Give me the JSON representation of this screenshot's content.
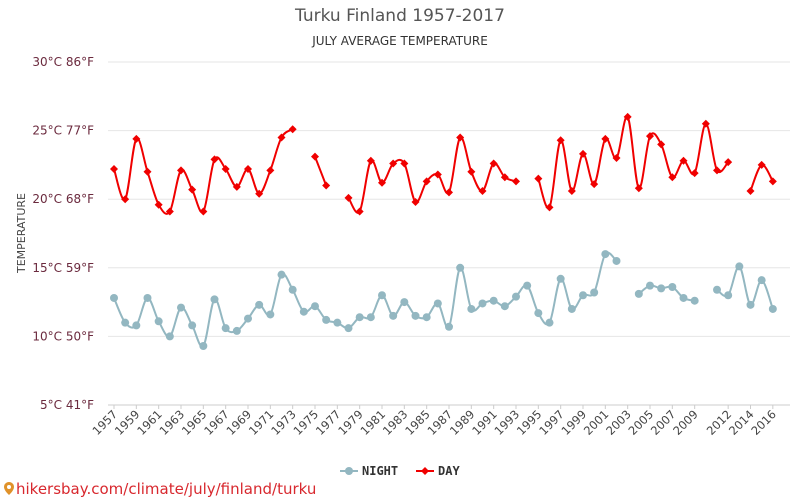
{
  "chart_data": {
    "type": "line",
    "title": "Turku Finland 1957-2017",
    "subtitle": "JULY AVERAGE TEMPERATURE",
    "ylabel": "TEMPERATURE",
    "ylim": [
      5,
      30
    ],
    "yticks": [
      {
        "value": 30,
        "label": "30°C 86°F"
      },
      {
        "value": 25,
        "label": "25°C 77°F"
      },
      {
        "value": 20,
        "label": "20°C 68°F"
      },
      {
        "value": 15,
        "label": "15°C 59°F"
      },
      {
        "value": 10,
        "label": "10°C 50°F"
      },
      {
        "value": 5,
        "label": "5°C 41°F"
      }
    ],
    "grid": true,
    "legend_position": "bottom",
    "x": [
      1957,
      1958,
      1959,
      1960,
      1961,
      1962,
      1963,
      1964,
      1965,
      1966,
      1967,
      1968,
      1969,
      1970,
      1971,
      1972,
      1973,
      1974,
      1975,
      1976,
      1977,
      1978,
      1979,
      1980,
      1981,
      1982,
      1983,
      1984,
      1985,
      1986,
      1987,
      1988,
      1989,
      1990,
      1991,
      1992,
      1993,
      1994,
      1995,
      1996,
      1997,
      1998,
      1999,
      2000,
      2001,
      2002,
      2003,
      2004,
      2005,
      2006,
      2007,
      2008,
      2009,
      2010,
      2011,
      2012,
      2013,
      2014,
      2015,
      2016,
      2017
    ],
    "xtick_labels": [
      "1957",
      "1959",
      "1961",
      "1963",
      "1965",
      "1967",
      "1969",
      "1971",
      "1973",
      "1975",
      "1977",
      "1979",
      "1981",
      "1983",
      "1985",
      "1987",
      "1989",
      "1991",
      "1993",
      "1995",
      "1997",
      "1999",
      "2001",
      "2003",
      "2005",
      "2007",
      "2009",
      "2012",
      "2014",
      "2016"
    ],
    "series": [
      {
        "name": "NIGHT",
        "color": "#93b7c1",
        "marker": "circle",
        "values": [
          12.8,
          11.0,
          10.8,
          12.8,
          11.1,
          10.0,
          12.1,
          10.8,
          9.3,
          12.7,
          10.6,
          10.4,
          11.3,
          12.3,
          11.6,
          14.5,
          13.4,
          11.8,
          12.2,
          11.2,
          11.0,
          10.6,
          11.4,
          11.4,
          13.0,
          11.5,
          12.5,
          11.5,
          11.4,
          12.4,
          10.7,
          15.0,
          12.0,
          12.4,
          12.6,
          12.2,
          12.9,
          13.7,
          11.7,
          11.0,
          14.2,
          12.0,
          13.0,
          13.2,
          16.0,
          15.5,
          null,
          13.1,
          13.7,
          13.5,
          13.6,
          12.8,
          12.6,
          null,
          13.4,
          13.0,
          15.1,
          12.3,
          14.1,
          12.0,
          null
        ]
      },
      {
        "name": "DAY",
        "color": "#f00000",
        "marker": "diamond",
        "values": [
          22.2,
          20.0,
          24.4,
          22.0,
          19.6,
          19.1,
          22.1,
          20.7,
          19.1,
          22.9,
          22.2,
          20.9,
          22.2,
          20.4,
          22.1,
          24.5,
          25.1,
          null,
          23.1,
          21.0,
          null,
          20.1,
          19.1,
          22.8,
          21.2,
          22.6,
          22.6,
          19.8,
          21.3,
          21.8,
          20.5,
          24.5,
          22.0,
          20.6,
          22.6,
          21.6,
          21.3,
          null,
          21.5,
          19.4,
          24.3,
          20.6,
          23.3,
          21.1,
          24.4,
          23.0,
          26.0,
          20.8,
          24.6,
          24.0,
          21.6,
          22.8,
          21.9,
          25.5,
          22.1,
          22.7,
          null,
          20.6,
          22.5,
          21.3,
          null
        ]
      }
    ]
  },
  "legend": {
    "night_label": "NIGHT",
    "day_label": "DAY"
  },
  "watermark": "hikersbay.com/climate/july/finland/turku"
}
